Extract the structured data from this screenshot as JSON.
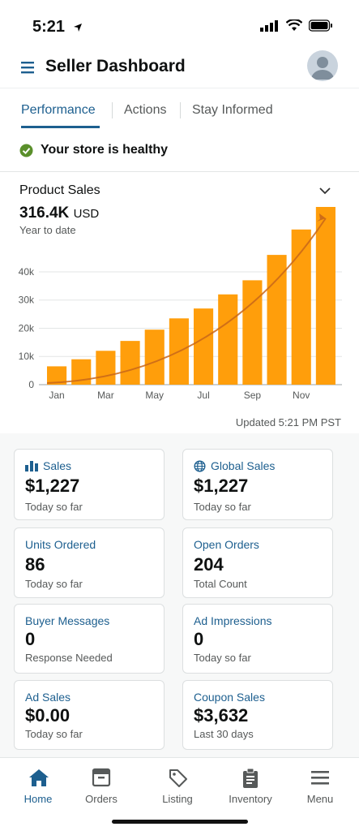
{
  "status_bar": {
    "time": "5:21"
  },
  "header": {
    "title": "Seller Dashboard"
  },
  "tabs": [
    {
      "label": "Performance",
      "active": true
    },
    {
      "label": "Actions",
      "active": false
    },
    {
      "label": "Stay Informed",
      "active": false
    }
  ],
  "health": {
    "text": "Your store is healthy",
    "color": "#5a8f2b"
  },
  "product_sales": {
    "title": "Product Sales",
    "value": "316.4K",
    "unit": "USD",
    "subtitle": "Year to date",
    "updated": "Updated 5:21 PM PST"
  },
  "chart_data": {
    "type": "bar",
    "categories": [
      "Jan",
      "Feb",
      "Mar",
      "Apr",
      "May",
      "Jun",
      "Jul",
      "Aug",
      "Sep",
      "Oct",
      "Nov",
      "Dec"
    ],
    "x_tick_labels": [
      "Jan",
      "Mar",
      "May",
      "Jul",
      "Sep",
      "Nov"
    ],
    "values": [
      6500,
      9000,
      12000,
      15500,
      19500,
      23500,
      27000,
      32000,
      37000,
      46000,
      55000,
      63000
    ],
    "y_ticks": [
      0,
      10000,
      20000,
      30000,
      40000
    ],
    "y_tick_labels": [
      "0",
      "10k",
      "20k",
      "30k",
      "40k"
    ],
    "ylim": [
      0,
      63000
    ],
    "trend_arrow": true,
    "grid": true,
    "bar_color": "#ff9e0b",
    "trend_color": "#c8661a"
  },
  "metrics": [
    {
      "label": "Sales",
      "icon": "bar-chart-icon",
      "value": "$1,227",
      "note": "Today so far"
    },
    {
      "label": "Global Sales",
      "icon": "globe-icon",
      "value": "$1,227",
      "note": "Today so far"
    },
    {
      "label": "Units Ordered",
      "value": "86",
      "note": "Today so far"
    },
    {
      "label": "Open Orders",
      "value": "204",
      "note": "Total Count"
    },
    {
      "label": "Buyer Messages",
      "value": "0",
      "note": "Response Needed"
    },
    {
      "label": "Ad Impressions",
      "value": "0",
      "note": "Today so far"
    },
    {
      "label": "Ad Sales",
      "value": "$0.00",
      "note": "Today so far"
    },
    {
      "label": "Coupon Sales",
      "value": "$3,632",
      "note": "Last 30 days"
    }
  ],
  "bottom_nav": [
    {
      "label": "Home",
      "icon": "home-icon",
      "active": true
    },
    {
      "label": "Orders",
      "icon": "orders-icon",
      "active": false
    },
    {
      "label": "Listing",
      "icon": "tag-icon",
      "active": false
    },
    {
      "label": "Inventory",
      "icon": "clipboard-icon",
      "active": false
    },
    {
      "label": "Menu",
      "icon": "menu-icon",
      "active": false
    }
  ],
  "colors": {
    "accent": "#1d5f8f",
    "bar": "#ff9e0b"
  }
}
